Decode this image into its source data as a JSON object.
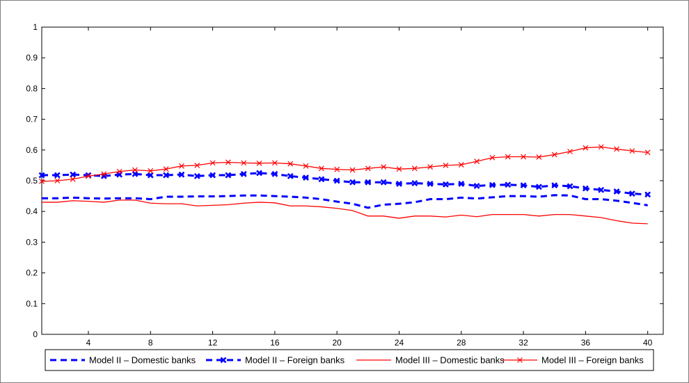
{
  "chart_data": {
    "type": "line",
    "title": "",
    "xlabel": "",
    "ylabel": "",
    "xlim": [
      1,
      41
    ],
    "ylim": [
      0,
      1
    ],
    "xticks": [
      4,
      8,
      12,
      16,
      20,
      24,
      28,
      32,
      36,
      40
    ],
    "xtick_labels": [
      "4",
      "8",
      "12",
      "16",
      "20",
      "24",
      "28",
      "32",
      "36",
      "40"
    ],
    "yticks": [
      0,
      0.1,
      0.2,
      0.3,
      0.4,
      0.5,
      0.6,
      0.7,
      0.8,
      0.9,
      1
    ],
    "ytick_labels": [
      "0",
      "0.1",
      "0.2",
      "0.3",
      "0.4",
      "0.5",
      "0.6",
      "0.7",
      "0.8",
      "0.9",
      "1"
    ],
    "grid": false,
    "legend_position": "bottom-outside",
    "x": [
      1,
      2,
      3,
      4,
      5,
      6,
      7,
      8,
      9,
      10,
      11,
      12,
      13,
      14,
      15,
      16,
      17,
      18,
      19,
      20,
      21,
      22,
      23,
      24,
      25,
      26,
      27,
      28,
      29,
      30,
      31,
      32,
      33,
      34,
      35,
      36,
      37,
      38,
      39,
      40
    ],
    "series": [
      {
        "name": "Model II – Domestic banks",
        "color": "#0000ff",
        "style": "dashed",
        "marker": "none",
        "values": [
          0.443,
          0.443,
          0.445,
          0.443,
          0.442,
          0.443,
          0.443,
          0.44,
          0.448,
          0.448,
          0.449,
          0.449,
          0.45,
          0.452,
          0.452,
          0.45,
          0.448,
          0.445,
          0.44,
          0.432,
          0.425,
          0.412,
          0.422,
          0.425,
          0.43,
          0.44,
          0.44,
          0.445,
          0.442,
          0.446,
          0.45,
          0.45,
          0.448,
          0.453,
          0.452,
          0.44,
          0.44,
          0.435,
          0.428,
          0.42
        ]
      },
      {
        "name": "Model II – Foreign banks",
        "color": "#0000ff",
        "style": "dashed",
        "marker": "x",
        "values": [
          0.518,
          0.518,
          0.52,
          0.518,
          0.515,
          0.52,
          0.522,
          0.518,
          0.518,
          0.52,
          0.515,
          0.518,
          0.518,
          0.522,
          0.525,
          0.522,
          0.515,
          0.51,
          0.505,
          0.5,
          0.495,
          0.495,
          0.495,
          0.49,
          0.492,
          0.49,
          0.488,
          0.49,
          0.483,
          0.486,
          0.487,
          0.485,
          0.48,
          0.485,
          0.482,
          0.475,
          0.47,
          0.465,
          0.458,
          0.455
        ]
      },
      {
        "name": "Model III – Domestic banks",
        "color": "#ff0000",
        "style": "solid",
        "marker": "none",
        "values": [
          0.43,
          0.43,
          0.435,
          0.433,
          0.43,
          0.437,
          0.437,
          0.427,
          0.425,
          0.425,
          0.418,
          0.42,
          0.422,
          0.427,
          0.43,
          0.428,
          0.418,
          0.418,
          0.415,
          0.41,
          0.403,
          0.385,
          0.385,
          0.378,
          0.385,
          0.385,
          0.382,
          0.388,
          0.383,
          0.39,
          0.39,
          0.39,
          0.385,
          0.39,
          0.39,
          0.385,
          0.38,
          0.37,
          0.362,
          0.36
        ]
      },
      {
        "name": "Model III – Foreign banks",
        "color": "#ff0000",
        "style": "solid",
        "marker": "x",
        "values": [
          0.498,
          0.5,
          0.505,
          0.515,
          0.522,
          0.53,
          0.535,
          0.532,
          0.538,
          0.548,
          0.55,
          0.558,
          0.56,
          0.558,
          0.557,
          0.558,
          0.555,
          0.548,
          0.54,
          0.537,
          0.535,
          0.54,
          0.545,
          0.538,
          0.54,
          0.545,
          0.55,
          0.552,
          0.563,
          0.575,
          0.578,
          0.578,
          0.577,
          0.585,
          0.595,
          0.607,
          0.61,
          0.603,
          0.597,
          0.592
        ]
      }
    ]
  }
}
